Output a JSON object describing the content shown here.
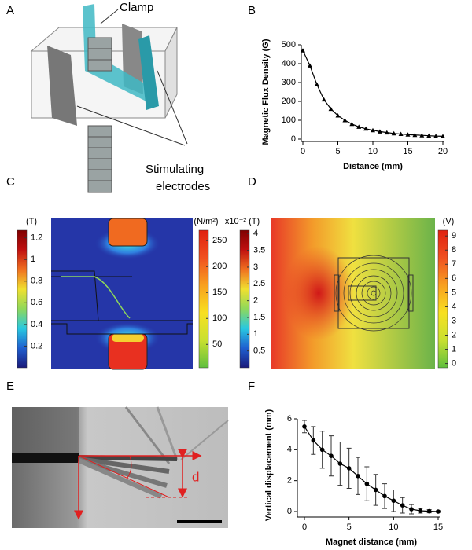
{
  "panel_labels": [
    "A",
    "B",
    "C",
    "D",
    "E",
    "F"
  ],
  "schematic": {
    "clamp_label": "Clamp",
    "electrode_label": [
      "Stimulating",
      "electrodes"
    ]
  },
  "annotation": {
    "d_label": "d"
  },
  "chart_data": [
    {
      "type": "line",
      "marker": "triangle",
      "color": "#000000",
      "xlabel": "Distance (mm)",
      "ylabel": "Magnetic Flux Density (G)",
      "x": [
        0,
        1,
        2,
        3,
        4,
        5,
        6,
        7,
        8,
        9,
        10,
        11,
        12,
        13,
        14,
        15,
        16,
        17,
        18,
        19,
        20
      ],
      "values": [
        470,
        390,
        290,
        210,
        160,
        125,
        100,
        80,
        65,
        55,
        47,
        40,
        35,
        30,
        27,
        24,
        22,
        20,
        18,
        16,
        15
      ],
      "xlim": [
        0,
        20
      ],
      "ylim": [
        0,
        500
      ],
      "xticks": [
        0,
        5,
        10,
        15,
        20
      ],
      "yticks": [
        0,
        100,
        200,
        300,
        400,
        500
      ]
    },
    {
      "type": "errorbar",
      "marker": "circle",
      "color": "#000000",
      "xlabel": "Magnet distance (mm)",
      "ylabel": "Vertical displacement (mm)",
      "x": [
        0,
        1,
        2,
        3,
        4,
        5,
        6,
        7,
        8,
        9,
        10,
        11,
        12,
        13,
        14,
        15
      ],
      "values": [
        5.5,
        4.6,
        4.0,
        3.6,
        3.1,
        2.8,
        2.3,
        1.8,
        1.4,
        1.0,
        0.7,
        0.4,
        0.15,
        0.05,
        0.02,
        0
      ],
      "errors": [
        0.4,
        0.9,
        1.2,
        1.3,
        1.4,
        1.3,
        1.2,
        1.1,
        1.0,
        0.8,
        0.7,
        0.5,
        0.3,
        0.15,
        0.1,
        0.05
      ],
      "xlim": [
        0,
        15
      ],
      "ylim": [
        0,
        6
      ],
      "xticks": [
        0,
        5,
        10,
        15
      ],
      "yticks": [
        0,
        2,
        4,
        6
      ]
    }
  ],
  "colorbars": [
    {
      "unit": "(T)",
      "lim": [
        0,
        1.27
      ],
      "ticks": [
        0.2,
        0.4,
        0.6,
        0.8,
        1,
        1.2
      ],
      "colors": [
        "#1a1a7a",
        "#1f5fd0",
        "#29c8e0",
        "#8fd85a",
        "#f0e030",
        "#f07020",
        "#c01010",
        "#800000"
      ]
    },
    {
      "unit": "(N/m²)",
      "lim": [
        5,
        270
      ],
      "ticks": [
        50,
        100,
        150,
        200,
        250
      ],
      "colors": [
        "#5fbf3f",
        "#c8e030",
        "#f8e020",
        "#f8a020",
        "#f05020",
        "#e02010"
      ]
    },
    {
      "unit": "x10⁻² (T)",
      "lim": [
        0,
        4.1
      ],
      "ticks": [
        0.5,
        1,
        1.5,
        2,
        2.5,
        3,
        3.5,
        4
      ],
      "colors": [
        "#1a1a7a",
        "#1f5fd0",
        "#29c8e0",
        "#8fd85a",
        "#f0e030",
        "#f07020",
        "#c01010",
        "#800000"
      ]
    },
    {
      "unit": "(V)",
      "lim": [
        -0.3,
        9.4
      ],
      "ticks": [
        0,
        1,
        2,
        3,
        4,
        5,
        6,
        7,
        8,
        9
      ],
      "colors": [
        "#5fbf3f",
        "#c8e030",
        "#f8e020",
        "#f8a020",
        "#f05020",
        "#e02010"
      ]
    }
  ]
}
